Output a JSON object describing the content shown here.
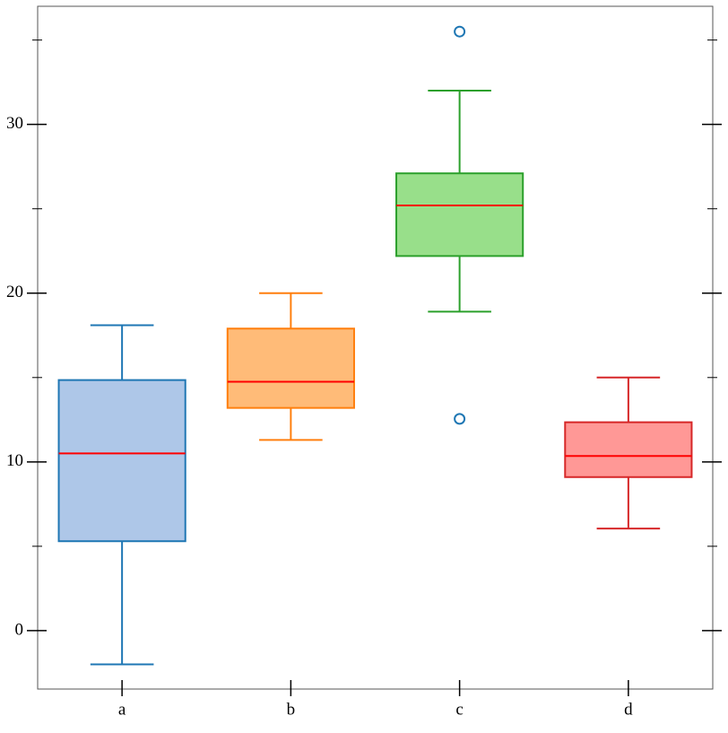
{
  "chart_data": {
    "type": "box",
    "categories": [
      "a",
      "b",
      "c",
      "d"
    ],
    "boxes": [
      {
        "low": -2.0,
        "q1": 5.3,
        "median": 10.5,
        "q3": 14.85,
        "high": 18.1,
        "outliers": []
      },
      {
        "low": 11.3,
        "q1": 13.2,
        "median": 14.75,
        "q3": 17.9,
        "high": 20.0,
        "outliers": []
      },
      {
        "low": 18.9,
        "q1": 22.2,
        "median": 25.2,
        "q3": 27.1,
        "high": 32.0,
        "outliers": [
          35.5,
          12.55
        ]
      },
      {
        "low": 6.05,
        "q1": 9.1,
        "median": 10.35,
        "q3": 12.35,
        "high": 15.0,
        "outliers": []
      }
    ],
    "colors": [
      "#1f77b4",
      "#ff7f0e",
      "#2ca02c",
      "#d62728"
    ],
    "fills": [
      "#aec7e8",
      "#ffbb78",
      "#98df8a",
      "#ff9896"
    ],
    "median_color": "#ff0000",
    "outlier_color": "#1f77b4",
    "ylim": [
      -3.46,
      37.0
    ],
    "yticks": [
      0,
      10,
      20,
      30
    ],
    "yminorticks": [
      5,
      15,
      25,
      35
    ]
  }
}
